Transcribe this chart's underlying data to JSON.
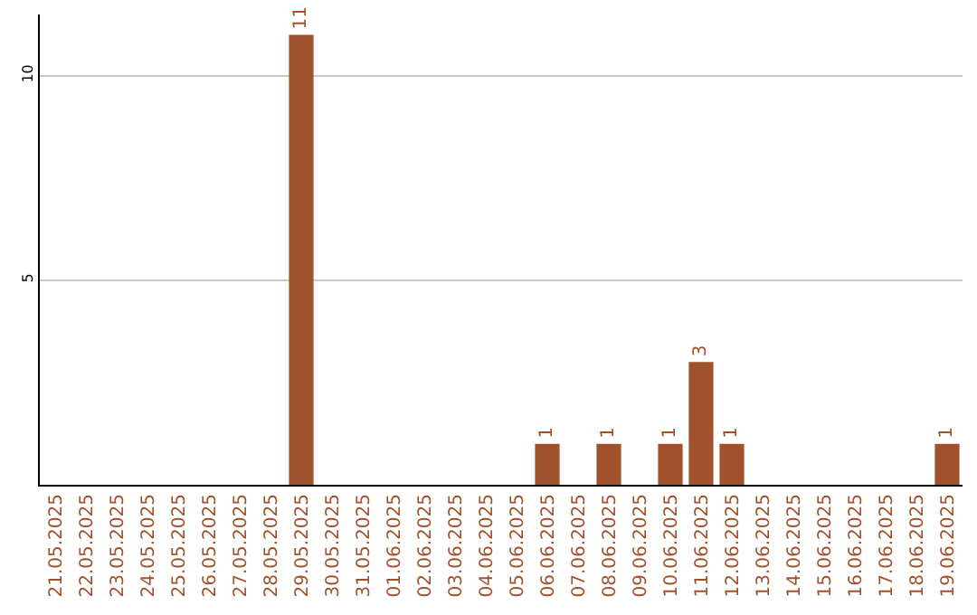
{
  "chart_data": {
    "type": "bar",
    "categories": [
      "21.05.2025",
      "22.05.2025",
      "23.05.2025",
      "24.05.2025",
      "25.05.2025",
      "26.05.2025",
      "27.05.2025",
      "28.05.2025",
      "29.05.2025",
      "30.05.2025",
      "31.05.2025",
      "01.06.2025",
      "02.06.2025",
      "03.06.2025",
      "04.06.2025",
      "05.06.2025",
      "06.06.2025",
      "07.06.2025",
      "08.06.2025",
      "09.06.2025",
      "10.06.2025",
      "11.06.2025",
      "12.06.2025",
      "13.06.2025",
      "14.06.2025",
      "15.06.2025",
      "16.06.2025",
      "17.06.2025",
      "18.06.2025",
      "19.06.2025"
    ],
    "values": [
      0,
      0,
      0,
      0,
      0,
      0,
      0,
      0,
      11,
      0,
      0,
      0,
      0,
      0,
      0,
      0,
      1,
      0,
      1,
      0,
      1,
      3,
      1,
      0,
      0,
      0,
      0,
      0,
      0,
      1
    ],
    "value_labels": [
      null,
      null,
      null,
      null,
      null,
      null,
      null,
      null,
      "11",
      null,
      null,
      null,
      null,
      null,
      null,
      null,
      "1",
      null,
      "1",
      null,
      "1",
      "3",
      "1",
      null,
      null,
      null,
      null,
      null,
      null,
      "1"
    ],
    "color": "#a0522d",
    "ylim": [
      0,
      11.5
    ],
    "yticks": [
      5,
      10
    ],
    "grid": "y"
  }
}
